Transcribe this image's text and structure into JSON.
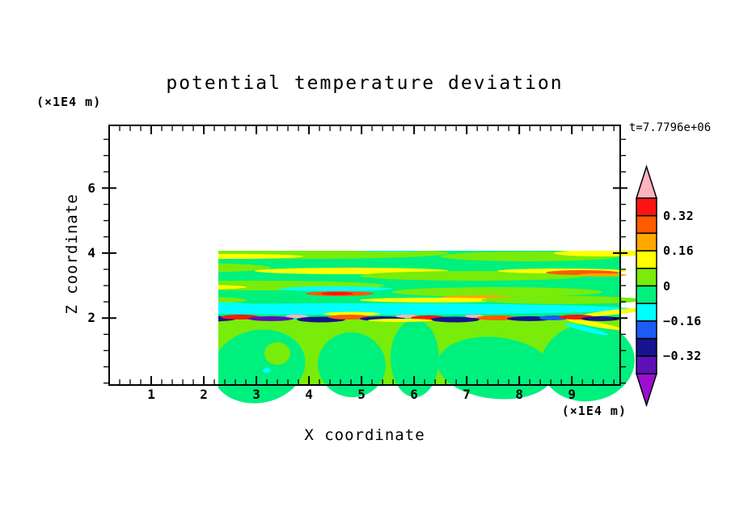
{
  "chart_data": {
    "type": "filled_contour",
    "title": "potential temperature deviation",
    "timestamp_label": "t=7.7796e+06",
    "axes": {
      "x": {
        "label": "X coordinate",
        "unit": "(×1E4 m)",
        "range": [
          0.2,
          9.92
        ],
        "ticks": [
          1,
          2,
          3,
          4,
          5,
          6,
          7,
          8,
          9
        ],
        "tick_labels": [
          "1",
          "2",
          "3",
          "4",
          "5",
          "6",
          "7",
          "8",
          "9"
        ],
        "minor_step": 0.2
      },
      "z": {
        "label": "Z coordinate",
        "unit": "(×1E4 m)",
        "range": [
          -0.06,
          7.93
        ],
        "ticks": [
          2,
          4,
          6
        ],
        "tick_labels": [
          "2",
          "4",
          "6"
        ],
        "minor_step": 0.5
      }
    },
    "contours": {
      "interval": 0.08,
      "labeled_levels": [
        0.32,
        0.16,
        0,
        -0.16,
        -0.32
      ],
      "range_shown": [
        -0.4,
        0.4
      ]
    },
    "colorbar": {
      "segments_top_to_bottom": [
        "rd",
        "or",
        "og",
        "yl",
        "ch",
        "sg",
        "cy",
        "bl",
        "nv",
        "dv"
      ],
      "over_color": "pk",
      "under_color": "pu",
      "labels": [
        {
          "text": "0.32",
          "boundary_index": 1
        },
        {
          "text": "0.16",
          "boundary_index": 3
        },
        {
          "text": "0",
          "boundary_index": 5
        },
        {
          "text": "−0.16",
          "boundary_index": 7
        },
        {
          "text": "−0.32",
          "boundary_index": 9
        }
      ]
    },
    "palette": {
      "pk": "#FFB3BE",
      "rd": "#FB1410",
      "or": "#FF5A00",
      "og": "#FFA800",
      "yl": "#FFFF00",
      "ch": "#79EC09",
      "sg": "#00F07E",
      "cy": "#00FFFF",
      "bl": "#1A5CF5",
      "nv": "#17128F",
      "dv": "#5B10B8",
      "pu": "#9B10D0"
    },
    "field": {
      "base": "sg",
      "underlays": [
        [
          "ch",
          0,
          240,
          632,
          81
        ]
      ],
      "features": [
        [
          "ch",
          300,
          112,
          290,
          9
        ],
        [
          "yl",
          120,
          104,
          100,
          4
        ],
        [
          "or",
          125,
          108,
          82,
          5
        ],
        [
          "rd",
          118,
          108,
          46,
          3
        ],
        [
          "yl",
          310,
          106,
          100,
          3
        ],
        [
          "nv",
          425,
          109,
          58,
          6
        ],
        [
          "bl",
          372,
          107,
          22,
          3
        ],
        [
          "bl",
          478,
          112,
          30,
          4
        ],
        [
          "yl",
          585,
          110,
          48,
          4
        ],
        [
          "cy",
          450,
          119,
          95,
          4
        ],
        [
          "cy",
          200,
          123,
          110,
          4
        ],
        [
          "nv",
          172,
          117,
          13,
          2
        ],
        [
          "ch",
          110,
          136,
          125,
          7
        ],
        [
          "ch",
          385,
          130,
          150,
          6
        ],
        [
          "ch",
          572,
          136,
          85,
          6
        ],
        [
          "bl",
          190,
          138,
          38,
          3
        ],
        [
          "yl",
          430,
          143,
          120,
          4
        ],
        [
          "ch",
          240,
          158,
          180,
          7
        ],
        [
          "cy",
          350,
          153,
          60,
          3
        ],
        [
          "yl",
          150,
          162,
          90,
          3
        ],
        [
          "ch",
          520,
          162,
          110,
          6
        ],
        [
          "yl",
          610,
          158,
          60,
          4
        ],
        [
          "og",
          300,
          178,
          40,
          2.5
        ],
        [
          "ch",
          90,
          176,
          110,
          6
        ],
        [
          "yl",
          300,
          180,
          120,
          4
        ],
        [
          "ch",
          450,
          186,
          140,
          6
        ],
        [
          "yl",
          560,
          180,
          80,
          3
        ],
        [
          "or",
          585,
          182,
          45,
          3
        ],
        [
          "og",
          610,
          185,
          30,
          2
        ],
        [
          "ch",
          180,
          198,
          160,
          6
        ],
        [
          "yl",
          100,
          200,
          70,
          3
        ],
        [
          "ch",
          480,
          206,
          130,
          6
        ],
        [
          "cy",
          280,
          202,
          70,
          3
        ],
        [
          "or",
          285,
          208,
          42,
          3
        ],
        [
          "rd",
          282,
          208,
          20,
          2
        ],
        [
          "og",
          455,
          213,
          45,
          3
        ],
        [
          "yl",
          400,
          216,
          90,
          3
        ],
        [
          "ch",
          560,
          216,
          100,
          5
        ],
        [
          "ch",
          80,
          216,
          90,
          5
        ],
        [
          "ch",
          300,
          98,
          300,
          7
        ],
        [
          "yl",
          250,
          100,
          150,
          5
        ],
        [
          "og",
          240,
          101,
          80,
          3
        ],
        [
          "yl",
          520,
          104,
          90,
          4
        ],
        [
          "cy",
          80,
          104,
          85,
          5
        ],
        [
          "or",
          455,
          93,
          95,
          5
        ],
        [
          "rd",
          455,
          93,
          58,
          3
        ],
        [
          "pk",
          470,
          92,
          16,
          2
        ],
        [
          "nv",
          600,
          90,
          45,
          5
        ],
        [
          "bl",
          600,
          96,
          48,
          4
        ],
        [
          "yl",
          180,
          88,
          130,
          5
        ],
        [
          "nv",
          320,
          77,
          88,
          8
        ],
        [
          "dv",
          320,
          77,
          52,
          5
        ],
        [
          "cy",
          290,
          60,
          130,
          14
        ],
        [
          "yl",
          450,
          66,
          80,
          5
        ],
        [
          "yl",
          95,
          77,
          115,
          6
        ],
        [
          "og",
          85,
          78,
          70,
          4
        ],
        [
          "or",
          525,
          60,
          100,
          6
        ],
        [
          "rd",
          525,
          60,
          65,
          4
        ],
        [
          "nv",
          525,
          74,
          60,
          6
        ],
        [
          "bl",
          565,
          77,
          55,
          5
        ],
        [
          "or",
          270,
          63,
          92,
          7,
          -5
        ],
        [
          "rd",
          268,
          62,
          72,
          5,
          -5
        ],
        [
          "pk",
          330,
          57,
          24,
          3
        ],
        [
          "dv",
          135,
          52,
          72,
          7
        ],
        [
          "nv",
          165,
          58,
          55,
          4
        ],
        [
          "or",
          70,
          50,
          88,
          5
        ],
        [
          "rd",
          58,
          50,
          55,
          4
        ],
        [
          "cy",
          120,
          64,
          80,
          4
        ],
        [
          "bl",
          40,
          62,
          45,
          4
        ],
        [
          "nv",
          512,
          46,
          42,
          5
        ],
        [
          "bl",
          560,
          41,
          35,
          4
        ],
        [
          "yl",
          440,
          52,
          70,
          4
        ],
        [
          "cy",
          610,
          55,
          40,
          5
        ],
        [
          "rd",
          620,
          70,
          40,
          4
        ],
        [
          "yl",
          620,
          84,
          40,
          4
        ],
        [
          "dv",
          55,
          46,
          75,
          7
        ],
        [
          "rd",
          75,
          39,
          85,
          4
        ],
        [
          "og",
          75,
          42,
          90,
          3
        ],
        [
          "pu",
          480,
          6,
          160,
          9
        ],
        [
          "pu",
          610,
          14,
          40,
          10
        ],
        [
          "pk",
          210,
          5,
          135,
          8
        ],
        [
          "og",
          30,
          4,
          40,
          3
        ],
        [
          "rd",
          60,
          7,
          45,
          3
        ],
        [
          "yl",
          120,
          3,
          40,
          2.5
        ],
        [
          "dv",
          80,
          13,
          115,
          8
        ],
        [
          "rd",
          290,
          13,
          40,
          6,
          -10
        ],
        [
          "yl",
          60,
          21,
          75,
          2.5
        ],
        [
          "cy",
          120,
          22,
          50,
          2.5
        ],
        [
          "yl",
          90,
          31,
          115,
          11
        ],
        [
          "og",
          75,
          31,
          105,
          9.5
        ],
        [
          "pk",
          75,
          31,
          95,
          8
        ],
        [
          "cy",
          185,
          32,
          35,
          5
        ],
        [
          "or",
          355,
          28,
          95,
          8
        ],
        [
          "rd",
          355,
          28,
          78,
          6
        ],
        [
          "pk",
          420,
          18,
          75,
          7
        ],
        [
          "rd",
          462,
          18,
          12,
          4
        ],
        [
          "dv",
          430,
          30,
          90,
          7
        ],
        [
          "cy",
          585,
          12,
          48,
          5
        ],
        [
          "bl",
          612,
          18,
          28,
          4
        ],
        [
          "yl",
          560,
          28,
          60,
          5
        ],
        [
          "og",
          590,
          35,
          50,
          4
        ],
        [
          "or",
          520,
          36,
          112,
          7
        ],
        [
          "rd",
          520,
          36,
          95,
          5
        ],
        [
          "nv",
          420,
          38,
          45,
          6
        ],
        [
          "yl",
          200,
          44,
          80,
          4
        ],
        [
          "sg",
          55,
          290,
          75,
          42,
          18
        ],
        [
          "sg",
          185,
          298,
          58,
          45,
          -12
        ],
        [
          "sg",
          300,
          296,
          42,
          40,
          12
        ],
        [
          "sg",
          378,
          288,
          30,
          48
        ],
        [
          "sg",
          478,
          300,
          72,
          38,
          6
        ],
        [
          "sg",
          592,
          293,
          58,
          48,
          -8
        ],
        [
          "sg",
          0,
          312,
          42,
          26
        ],
        [
          "ch",
          208,
          282,
          16,
          14
        ],
        [
          "cy",
          195,
          303,
          5,
          3
        ],
        [
          "cy",
          316,
          227,
          330,
          7
        ],
        [
          "cy",
          90,
          222,
          90,
          4
        ],
        [
          "yl",
          45,
          231,
          42,
          3,
          6
        ],
        [
          "yl",
          625,
          231,
          40,
          3,
          -6
        ],
        [
          "yl",
          300,
          233,
          35,
          2.5
        ],
        [
          "yl",
          75,
          247,
          38,
          3,
          -12
        ],
        [
          "yl",
          600,
          246,
          35,
          3,
          10
        ],
        [
          "cy",
          35,
          252,
          28,
          3,
          -18
        ],
        [
          "cy",
          590,
          252,
          28,
          3,
          14
        ],
        [
          "rd",
          25,
          237,
          20,
          3
        ],
        [
          "or",
          58,
          238,
          28,
          3
        ],
        [
          "pk",
          88,
          236,
          16,
          2.5
        ],
        [
          "nv",
          125,
          239,
          32,
          3.5
        ],
        [
          "rd",
          162,
          237,
          24,
          3
        ],
        [
          "dv",
          200,
          239,
          28,
          3
        ],
        [
          "pk",
          232,
          236,
          14,
          2
        ],
        [
          "nv",
          262,
          240,
          30,
          3.5
        ],
        [
          "or",
          297,
          237,
          26,
          3
        ],
        [
          "nv",
          338,
          239,
          28,
          3
        ],
        [
          "pk",
          368,
          236,
          14,
          2
        ],
        [
          "rd",
          395,
          238,
          22,
          3
        ],
        [
          "nv",
          428,
          240,
          30,
          3.5
        ],
        [
          "pk",
          452,
          236,
          12,
          2
        ],
        [
          "or",
          480,
          238,
          26,
          3
        ],
        [
          "nv",
          520,
          239,
          28,
          3
        ],
        [
          "bl",
          550,
          238,
          18,
          3
        ],
        [
          "rd",
          578,
          237,
          22,
          3
        ],
        [
          "nv",
          608,
          239,
          24,
          3
        ],
        [
          "yl",
          360,
          241,
          40,
          2
        ]
      ]
    }
  }
}
